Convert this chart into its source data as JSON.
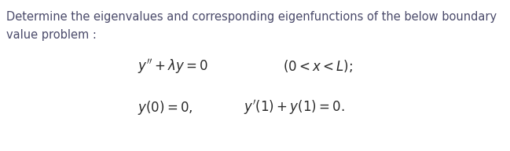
{
  "background_color": "#ffffff",
  "header_line1": "Determine the eigenvalues and corresponding eigenfunctions of the below boundary",
  "header_line2": "value problem :",
  "header_fontsize": 10.5,
  "header_color": "#4a4a6a",
  "eq1_text": "$y'' + \\lambda y = 0$",
  "eq1_condition": "$(0 < x < L);$",
  "eq2_left": "$y(0) = 0,$",
  "eq2_right": "$y'(1) + y(1) = 0.$",
  "math_fontsize": 12.0,
  "math_color": "#2a2a2a",
  "fig_width": 6.49,
  "fig_height": 1.92,
  "dpi": 100
}
